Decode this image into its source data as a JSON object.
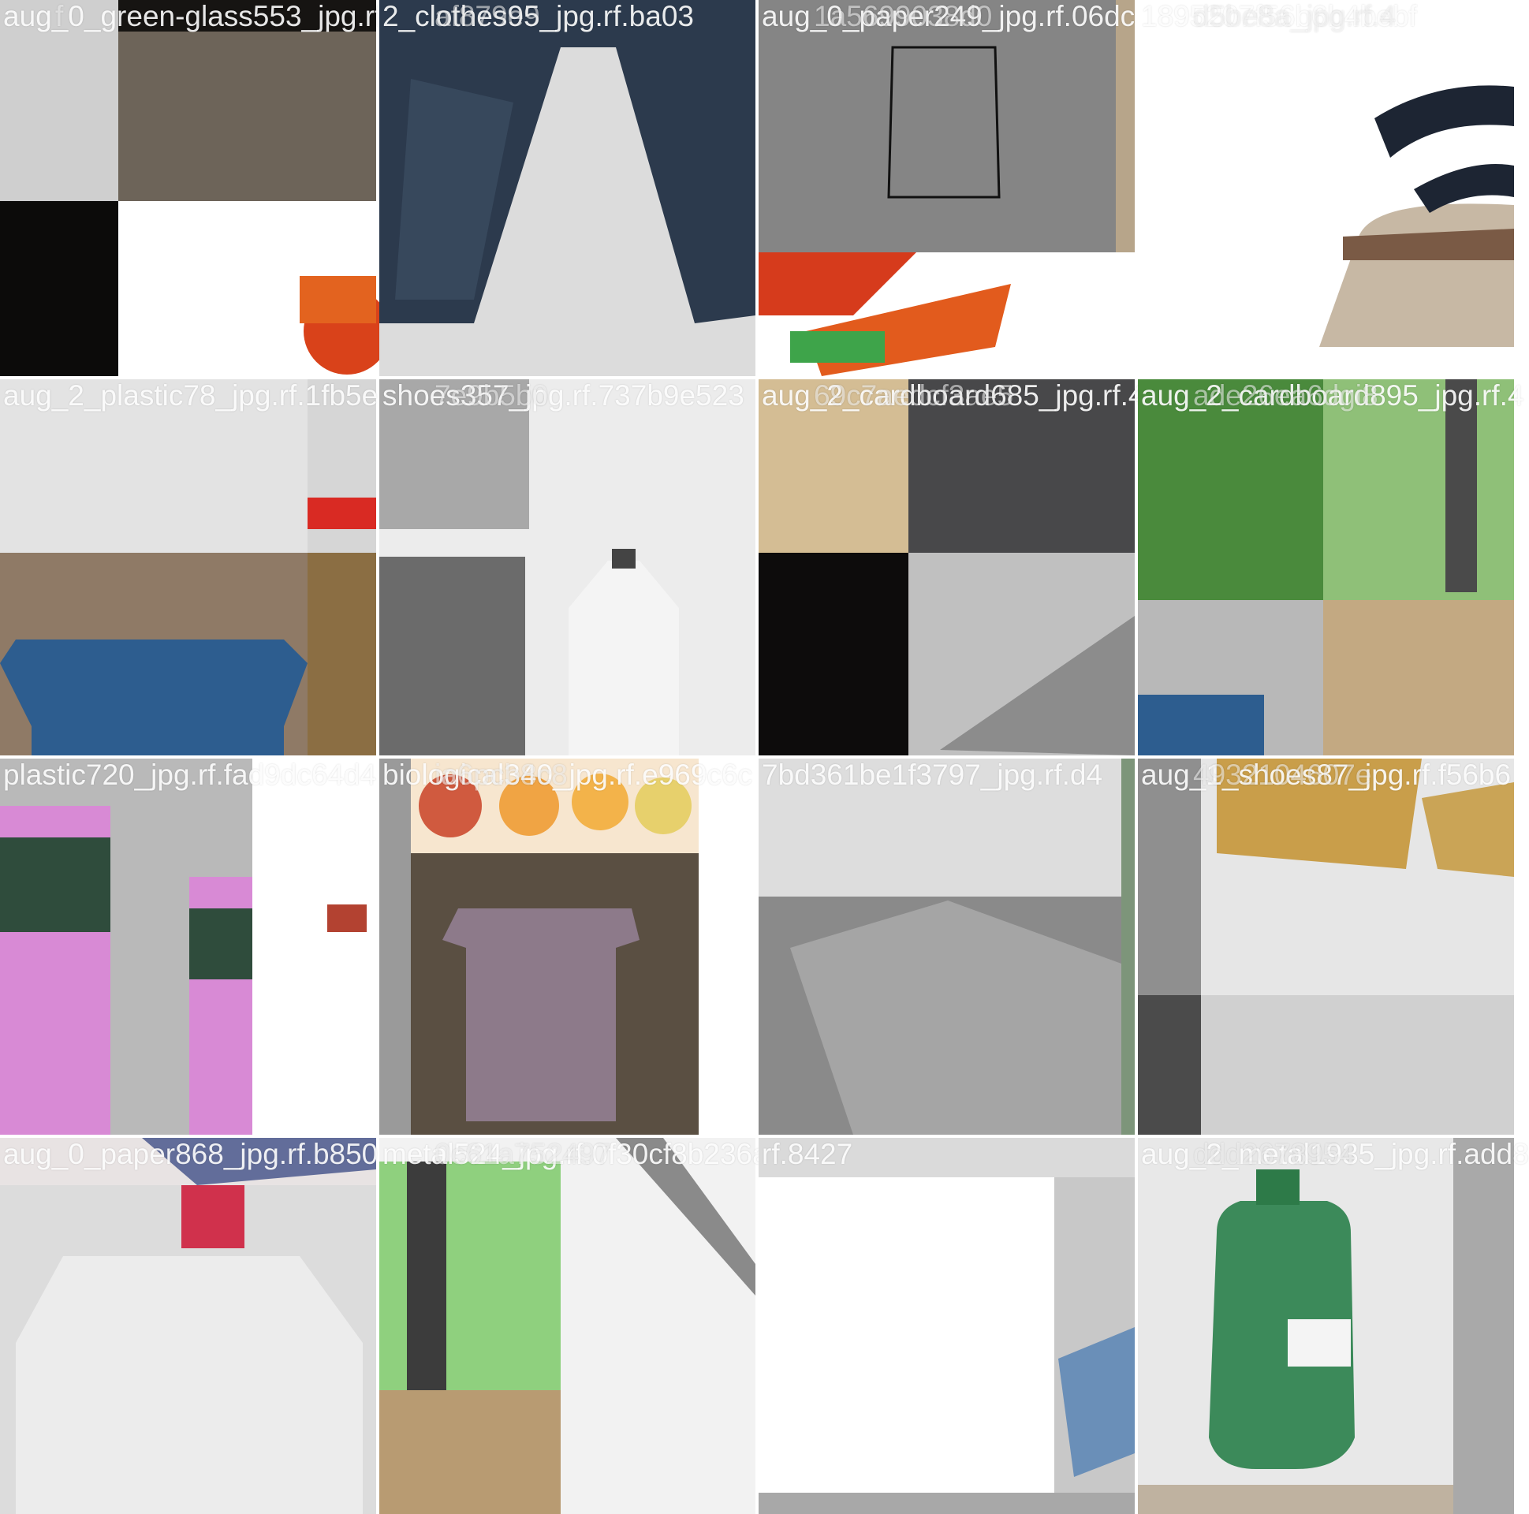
{
  "mosaic": {
    "tiles": [
      {
        "label_a": "aug_0_green-glass553_jpg.rf.a",
        "label_b": "f"
      },
      {
        "label_a": "2_clothes95_jpg.rf.ba03",
        "label_b": "af879e9"
      },
      {
        "label_a": "aug_0_paper249_jpg.rf.06dc",
        "label_b": "1a5699038d0"
      },
      {
        "label_a": "1895207f56b6b4bebf",
        "label_b": "d5be8a_jpg.rf.4"
      },
      {
        "label_a": "aug_2_plastic78_jpg.rf.1fb5e",
        "label_b": ""
      },
      {
        "label_a": "shoes357_jpg.rf.737b9e523",
        "label_b": "7e9b5b0"
      },
      {
        "label_a": "aug_2_cardboard685_jpg.rf.43",
        "label_b": "69c7aedcf3ae5"
      },
      {
        "label_a": "aug_2_cardboard895_jpg.rf.4",
        "label_b": "ade26ea6dgi8"
      },
      {
        "label_a": "plastic720_jpg.rf.fad9dc64d4",
        "label_b": ""
      },
      {
        "label_a": "biological340_jpg.rf.e969c6c",
        "label_b": "ia6pcb8c8"
      },
      {
        "label_a": "7bd361be1f3797_jpg.rf.d4",
        "label_b": ""
      },
      {
        "label_a": "aug_1_shoes87_jpg.rf.f56b6",
        "label_b": "4932104607e"
      },
      {
        "label_a": "aug_0_paper868_jpg.rf.b850",
        "label_b": ""
      },
      {
        "label_a": "metal524_jpg.rf.0f30cf8b236a",
        "label_b": "0c61a752497"
      },
      {
        "label_a": "rf.8427",
        "label_b": ""
      },
      {
        "label_a": "aug_2_metal1935_jpg.rf.add8",
        "label_b": "ddd2678954"
      }
    ]
  },
  "colors": {
    "background": "#ffffff",
    "overlay_text": "#ffffff",
    "tile_gray": "#9a9a9a"
  }
}
